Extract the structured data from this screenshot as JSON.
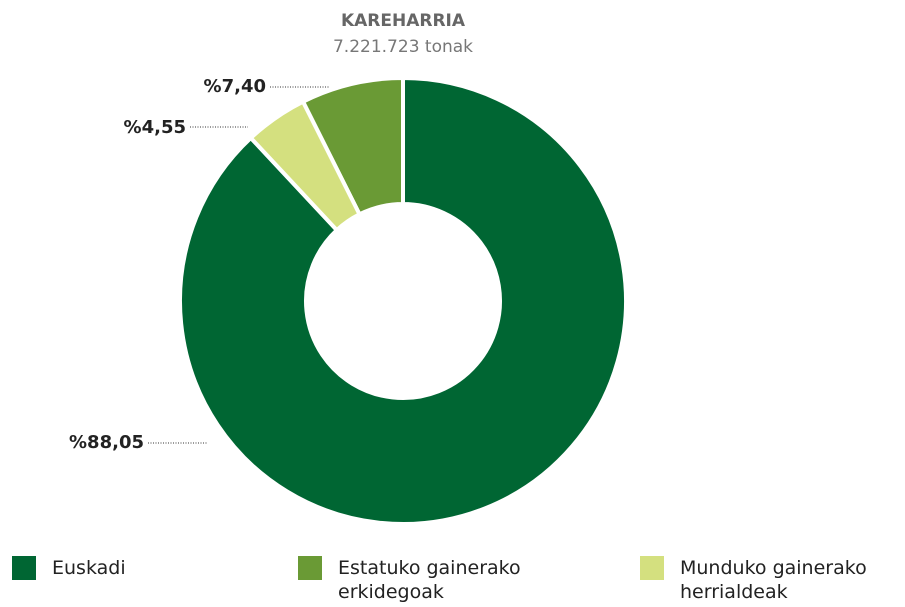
{
  "chart_data": {
    "type": "donut",
    "title": "KAREHARRIA",
    "subtitle": "7.221.723 tonak",
    "categories": [
      "Euskadi",
      "Estatuko gainerako erkidegoak",
      "Munduko gainerako herrialdeak"
    ],
    "values": [
      88.05,
      7.4,
      4.55
    ],
    "value_labels": [
      "%88,05",
      "%7,40",
      "%4,55"
    ],
    "colors": [
      "#006633",
      "#6a9a35",
      "#d4e07f"
    ]
  }
}
